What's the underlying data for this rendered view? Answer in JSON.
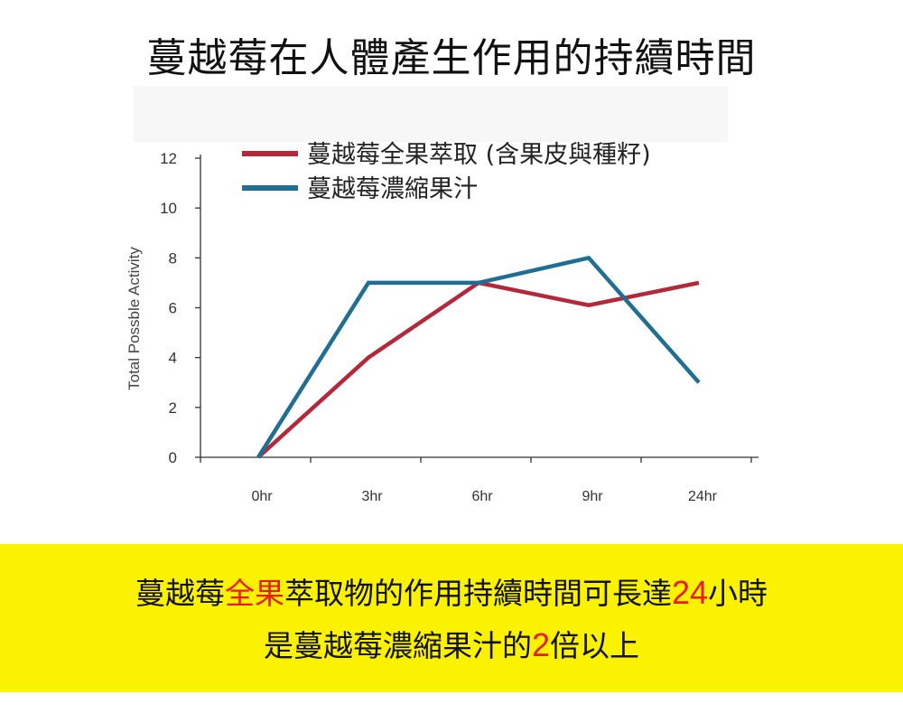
{
  "title": "蔓越莓在人體產生作用的持續時間",
  "chart_data": {
    "type": "line",
    "categories": [
      "0hr",
      "3hr",
      "6hr",
      "9hr",
      "24hr"
    ],
    "ylabel": "Total Possble Activity",
    "ylim": [
      0,
      12
    ],
    "yticks": [
      0,
      2,
      4,
      6,
      8,
      10,
      12
    ],
    "grid": false,
    "legend_position": "top",
    "series": [
      {
        "name": "蔓越莓全果萃取 (含果皮與種籽)",
        "color": "#b5283a",
        "values": [
          0,
          4,
          7,
          6.1,
          7
        ]
      },
      {
        "name": "蔓越莓濃縮果汁",
        "color": "#1f6e93",
        "values": [
          0,
          7,
          7,
          8,
          3
        ]
      }
    ]
  },
  "footer": {
    "line1": {
      "a": "蔓越莓",
      "b": "全果",
      "c": "萃取物的作用持續時間可長達",
      "d": "24",
      "e": "小時"
    },
    "line2": {
      "a": "是蔓越莓濃縮果汁的",
      "b": "2",
      "c": "倍以上"
    }
  }
}
